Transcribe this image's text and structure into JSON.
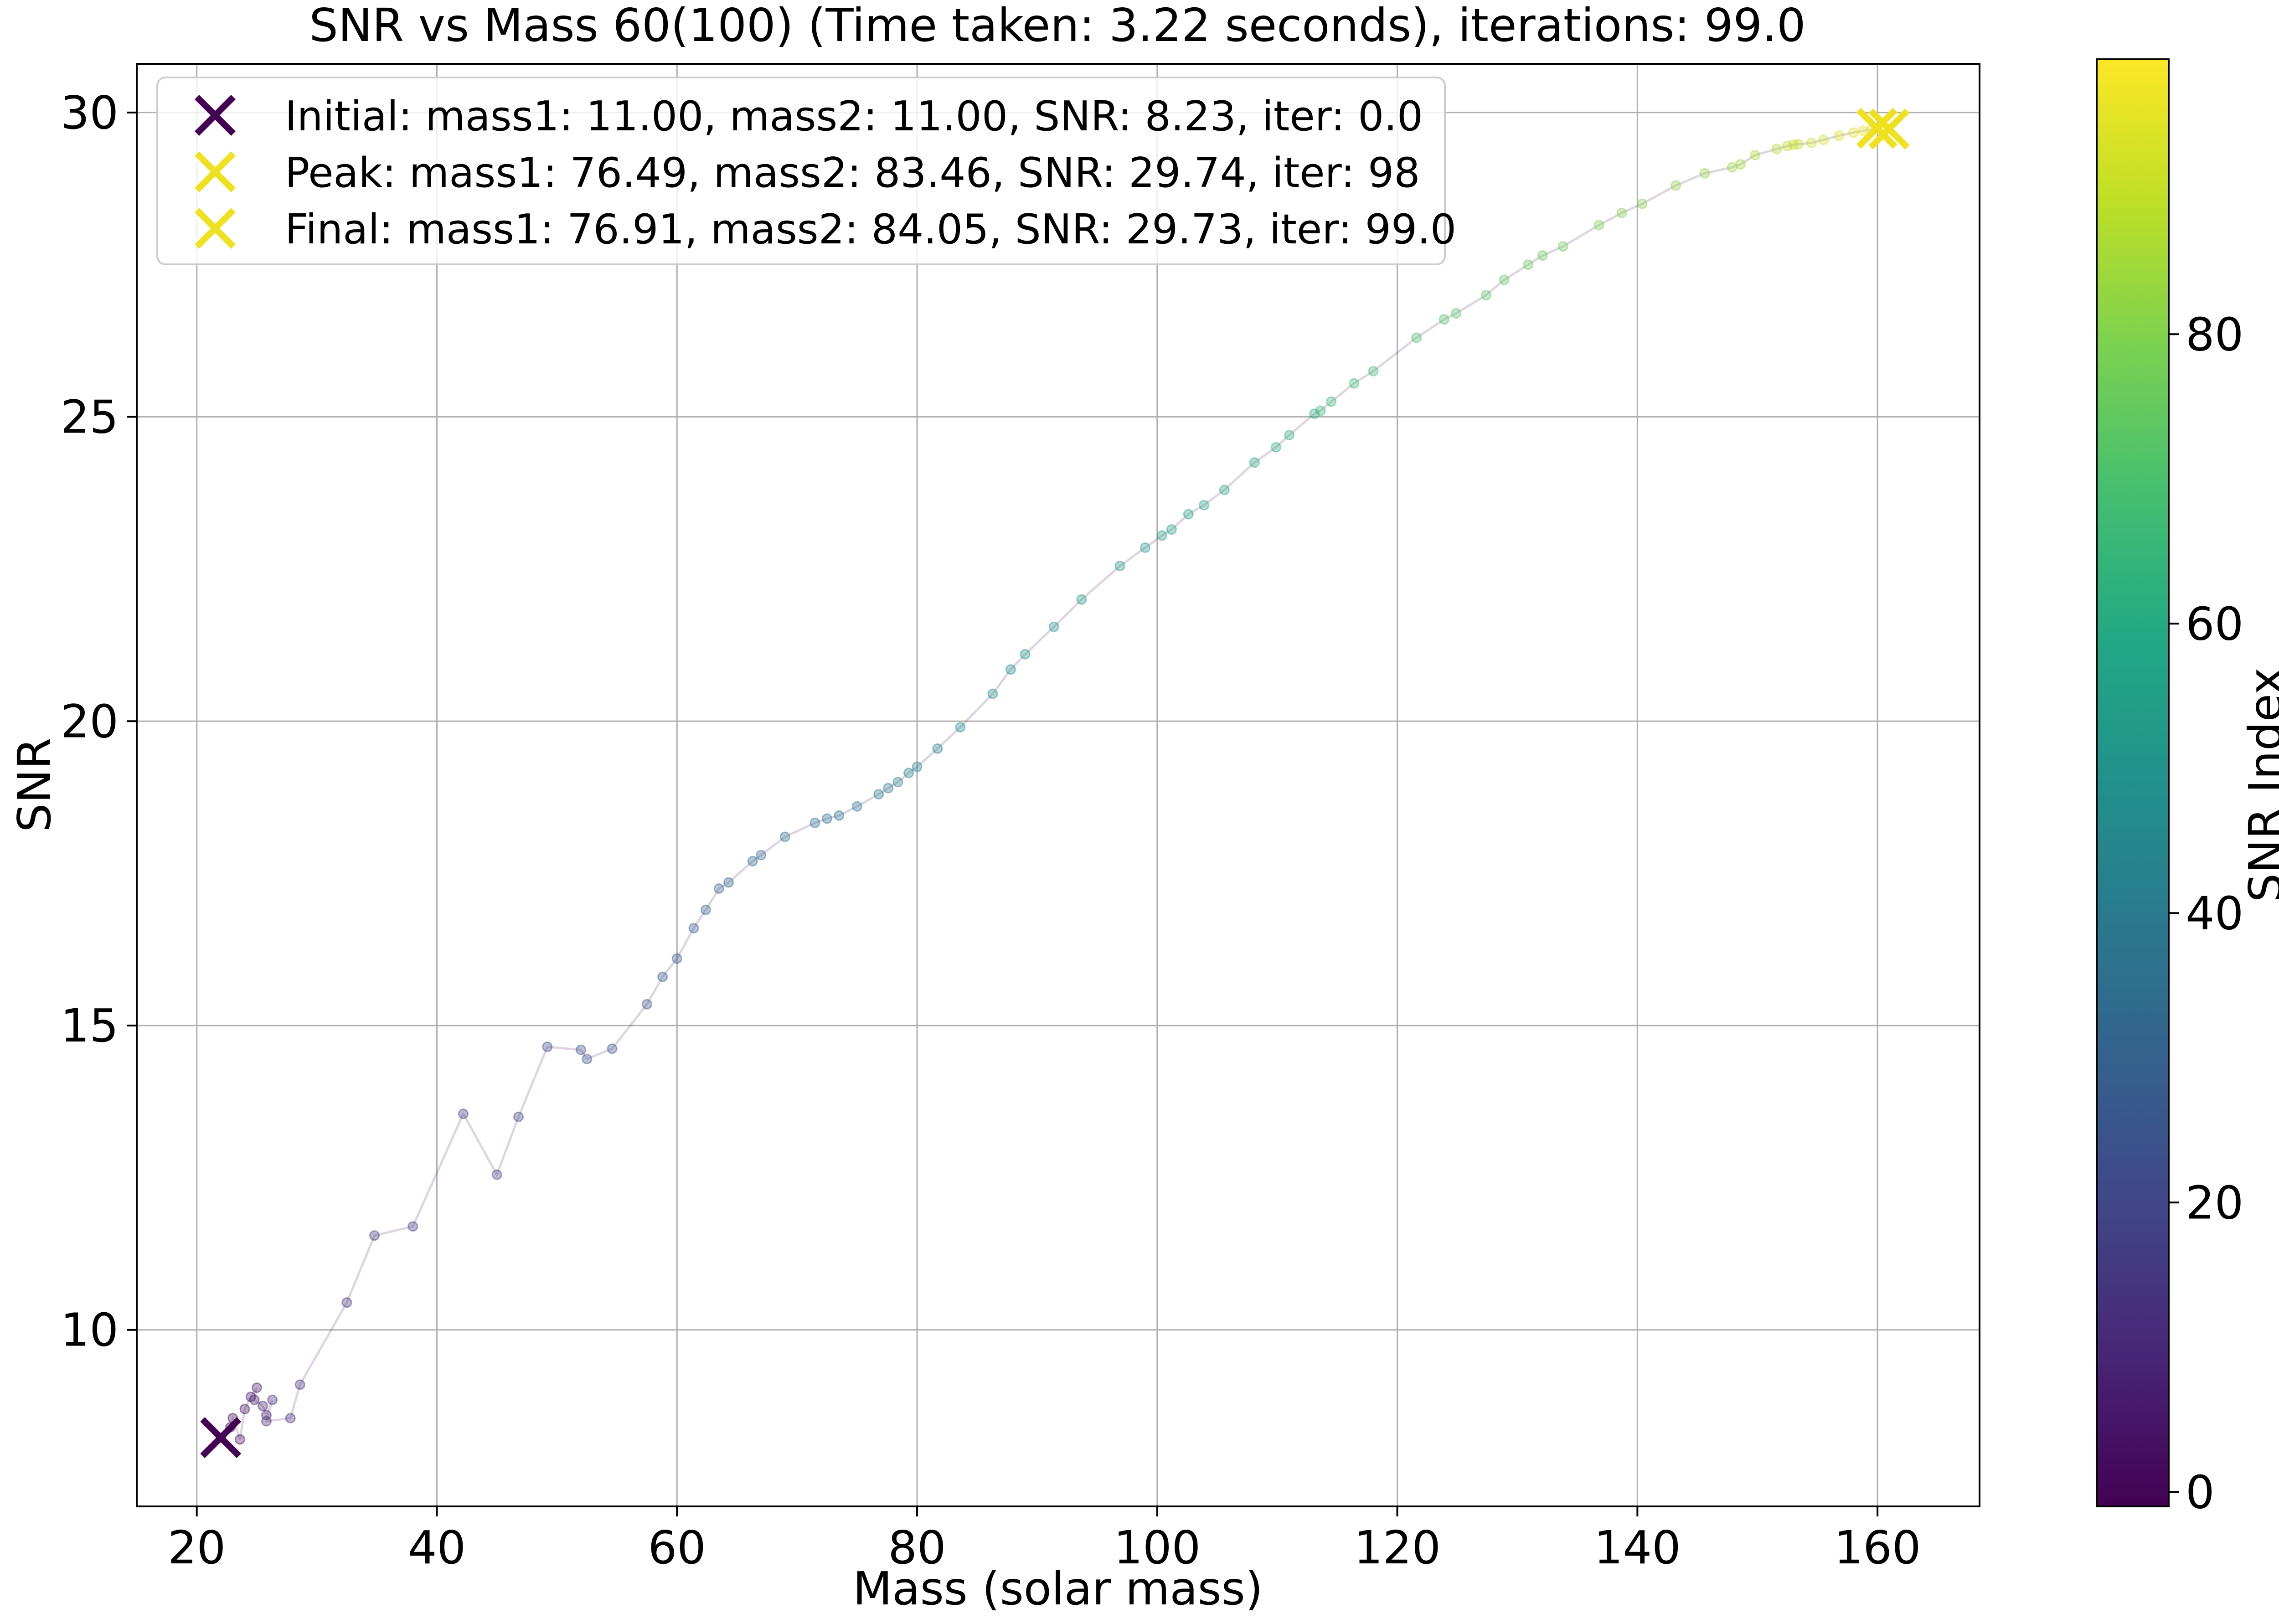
{
  "chart_data": {
    "type": "scatter",
    "title": "SNR vs Mass 60(100) (Time taken: 3.22 seconds), iterations: 99.0",
    "xlabel": "Mass (solar mass)",
    "ylabel": "SNR",
    "xlim": [
      15,
      168.5
    ],
    "ylim": [
      7.1,
      30.8
    ],
    "xticks": [
      20,
      40,
      60,
      80,
      100,
      120,
      140,
      160
    ],
    "yticks": [
      10,
      15,
      20,
      25,
      30
    ],
    "grid": true,
    "legend_position": "top-left",
    "colorbar": {
      "label": "SNR Index",
      "range": [
        -1,
        99
      ],
      "ticks": [
        0,
        20,
        40,
        60,
        80
      ],
      "colormap": "viridis"
    },
    "trajectory": {
      "style": "connected scatter, translucent, colored by iteration index",
      "points": [
        [
          22.0,
          8.23
        ],
        [
          22.8,
          8.4
        ],
        [
          23.0,
          8.55
        ],
        [
          23.6,
          8.2
        ],
        [
          24.0,
          8.7
        ],
        [
          24.5,
          8.9
        ],
        [
          25.0,
          9.05
        ],
        [
          24.8,
          8.85
        ],
        [
          25.5,
          8.75
        ],
        [
          25.8,
          8.6
        ],
        [
          26.3,
          8.85
        ],
        [
          25.8,
          8.5
        ],
        [
          27.8,
          8.55
        ],
        [
          28.6,
          9.1
        ],
        [
          32.5,
          10.45
        ],
        [
          34.8,
          11.55
        ],
        [
          38.0,
          11.7
        ],
        [
          42.2,
          13.55
        ],
        [
          45.0,
          12.55
        ],
        [
          46.8,
          13.5
        ],
        [
          49.2,
          14.65
        ],
        [
          52.0,
          14.6
        ],
        [
          52.5,
          14.45
        ],
        [
          54.6,
          14.62
        ],
        [
          57.5,
          15.35
        ],
        [
          58.8,
          15.8
        ],
        [
          60.0,
          16.1
        ],
        [
          61.4,
          16.6
        ],
        [
          62.4,
          16.9
        ],
        [
          63.5,
          17.25
        ],
        [
          64.3,
          17.35
        ],
        [
          66.3,
          17.7
        ],
        [
          67.0,
          17.8
        ],
        [
          69.0,
          18.1
        ],
        [
          71.5,
          18.33
        ],
        [
          72.5,
          18.4
        ],
        [
          73.5,
          18.45
        ],
        [
          75.0,
          18.6
        ],
        [
          76.8,
          18.8
        ],
        [
          77.6,
          18.9
        ],
        [
          78.4,
          19.0
        ],
        [
          79.3,
          19.15
        ],
        [
          80.0,
          19.25
        ],
        [
          81.7,
          19.55
        ],
        [
          83.6,
          19.9
        ],
        [
          86.3,
          20.45
        ],
        [
          87.8,
          20.85
        ],
        [
          89.0,
          21.1
        ],
        [
          91.4,
          21.55
        ],
        [
          93.7,
          22.0
        ],
        [
          96.9,
          22.55
        ],
        [
          99.0,
          22.85
        ],
        [
          100.4,
          23.05
        ],
        [
          101.2,
          23.15
        ],
        [
          102.6,
          23.4
        ],
        [
          103.9,
          23.55
        ],
        [
          105.6,
          23.8
        ],
        [
          108.1,
          24.25
        ],
        [
          109.9,
          24.5
        ],
        [
          111.0,
          24.7
        ],
        [
          113.1,
          25.05
        ],
        [
          113.6,
          25.1
        ],
        [
          114.5,
          25.25
        ],
        [
          116.4,
          25.55
        ],
        [
          118.0,
          25.75
        ],
        [
          121.6,
          26.3
        ],
        [
          123.9,
          26.6
        ],
        [
          124.9,
          26.7
        ],
        [
          127.4,
          27.0
        ],
        [
          128.9,
          27.25
        ],
        [
          130.9,
          27.5
        ],
        [
          132.1,
          27.65
        ],
        [
          133.8,
          27.8
        ],
        [
          136.8,
          28.15
        ],
        [
          138.7,
          28.35
        ],
        [
          140.4,
          28.5
        ],
        [
          143.2,
          28.8
        ],
        [
          145.6,
          29.0
        ],
        [
          147.9,
          29.1
        ],
        [
          148.6,
          29.15
        ],
        [
          149.8,
          29.3
        ],
        [
          151.6,
          29.4
        ],
        [
          152.5,
          29.45
        ],
        [
          153.0,
          29.47
        ],
        [
          153.4,
          29.48
        ],
        [
          154.5,
          29.5
        ],
        [
          155.5,
          29.55
        ],
        [
          156.8,
          29.62
        ],
        [
          158.0,
          29.67
        ],
        [
          158.8,
          29.7
        ],
        [
          159.5,
          29.72
        ],
        [
          159.9,
          29.74
        ],
        [
          160.4,
          29.73
        ]
      ]
    },
    "markers": [
      {
        "label": "Initial: mass1: 11.00, mass2: 11.00, SNR: 8.23, iter: 0.0",
        "x": 22.0,
        "y": 8.23,
        "color": "#440154"
      },
      {
        "label": "Peak: mass1: 76.49, mass2: 83.46, SNR: 29.74, iter: 98",
        "x": 159.95,
        "y": 29.74,
        "color": "#f0e11e"
      },
      {
        "label": "Final: mass1: 76.91, mass2: 84.05, SNR: 29.73, iter: 99.0",
        "x": 160.96,
        "y": 29.73,
        "color": "#f0e11e"
      }
    ]
  }
}
